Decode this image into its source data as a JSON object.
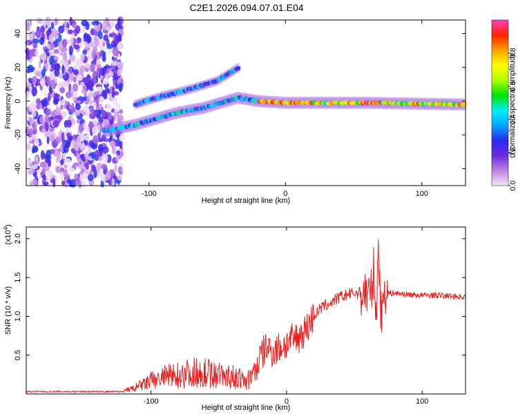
{
  "title": "C2E1.2026.094.07.01.E04",
  "chart_data": [
    {
      "type": "heatmap",
      "xlabel": "Height of straight line (km)",
      "ylabel": "Frequency (Hz)",
      "xlim": [
        -190,
        132
      ],
      "ylim": [
        -50,
        48
      ],
      "xticks": [
        -100,
        0,
        100
      ],
      "yticks": [
        -40,
        -20,
        0,
        20,
        40
      ],
      "grid": false,
      "colorbar": {
        "label": "Normalized spectral amplitude",
        "range": [
          0,
          1
        ],
        "ticks": [
          "0.0",
          "0.2",
          "0.4",
          "0.6",
          "0.8"
        ],
        "tick_values": [
          0.0,
          0.2,
          0.4,
          0.6,
          0.8
        ],
        "colors": [
          "#f2e6fa",
          "#c080e0",
          "#6a2ae0",
          "#2a2af0",
          "#00a8ff",
          "#00f0f0",
          "#00e000",
          "#b0ff00",
          "#ffff00",
          "#ffa000",
          "#ff2000",
          "#ff40c0"
        ]
      },
      "features": {
        "noise_region_x": [
          -190,
          -120
        ],
        "lower_band": {
          "x": [
            -133,
            -110,
            -80,
            -60,
            -35,
            -20,
            0,
            60,
            132
          ],
          "y": [
            -18,
            -14,
            -7,
            -4,
            2,
            0,
            -1,
            -1,
            -2
          ]
        },
        "upper_band": {
          "x": [
            -110,
            -90,
            -70,
            -50,
            -34
          ],
          "y": [
            -2,
            3,
            7,
            12,
            20
          ]
        }
      }
    },
    {
      "type": "line",
      "xlabel": "Height of straight line (km)",
      "ylabel": "SNR (10 * v/v)",
      "y_multiplier": "(x10",
      "y_multiplier_exp": "4",
      "y_multiplier_close": ")",
      "xlim": [
        -192,
        132
      ],
      "ylim": [
        0,
        2.15
      ],
      "xticks": [
        -100,
        0,
        100
      ],
      "yticks": [
        0.5,
        1.0,
        1.5,
        2.0
      ],
      "ytick_labels": [
        "0.5",
        "1.0",
        "1.5",
        "2.0"
      ],
      "grid": false,
      "color": "#e62020",
      "series": [
        {
          "name": "SNR",
          "x": [
            -192,
            -150,
            -120,
            -110,
            -100,
            -90,
            -80,
            -70,
            -60,
            -50,
            -40,
            -30,
            -25,
            -20,
            -15,
            -10,
            -5,
            0,
            5,
            10,
            15,
            20,
            25,
            30,
            35,
            40,
            45,
            50,
            55,
            60,
            62,
            64,
            66,
            68,
            70,
            72,
            75,
            80,
            90,
            100,
            110,
            120,
            132
          ],
          "y": [
            0.03,
            0.03,
            0.03,
            0.08,
            0.15,
            0.2,
            0.22,
            0.25,
            0.25,
            0.22,
            0.2,
            0.15,
            0.2,
            0.45,
            0.6,
            0.55,
            0.6,
            0.65,
            0.7,
            0.75,
            0.85,
            1.0,
            1.1,
            1.15,
            1.2,
            1.25,
            1.28,
            1.3,
            1.3,
            1.32,
            1.2,
            1.6,
            1.0,
            1.9,
            0.9,
            1.4,
            1.3,
            1.3,
            1.28,
            1.27,
            1.27,
            1.26,
            1.25
          ]
        }
      ]
    }
  ]
}
